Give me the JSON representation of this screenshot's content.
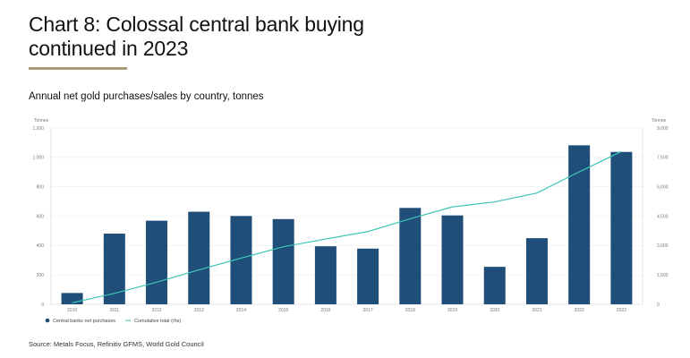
{
  "title_line1": "Chart 8: Colossal central bank buying",
  "title_line2": "continued in 2023",
  "subtitle": "Annual net gold purchases/sales by country, tonnes",
  "source": "Source: Metals Focus, Refinitiv GFMS, World Gold Council",
  "colors": {
    "bar": "#1f4e79",
    "line": "#3cc6b4",
    "accent_rule": "#a99b78"
  },
  "chart_data": {
    "type": "bar",
    "title": "Annual net gold purchases/sales by country, tonnes",
    "categories": [
      "2010",
      "2011",
      "2012",
      "2013",
      "2014",
      "2015",
      "2016",
      "2017",
      "2018",
      "2019",
      "2020",
      "2021",
      "2022",
      "2023"
    ],
    "series": [
      {
        "name": "Central banks net purchases",
        "type": "bar",
        "axis": "left",
        "values": [
          77,
          481,
          569,
          630,
          601,
          580,
          395,
          379,
          656,
          605,
          255,
          450,
          1082,
          1037
        ]
      },
      {
        "name": "Cumulative total (rhs)",
        "type": "line",
        "axis": "right",
        "values": [
          77,
          558,
          1127,
          1757,
          2358,
          2938,
          3333,
          3712,
          4368,
          4973,
          5228,
          5678,
          6760,
          7797
        ]
      }
    ],
    "ylabel": "Tonnes",
    "y2label": "Tonnes",
    "ylim": [
      0,
      1200
    ],
    "y2lim": [
      0,
      9000
    ],
    "yticks": [
      "0",
      "200",
      "400",
      "600",
      "800",
      "1,000",
      "1,200"
    ],
    "y2ticks": [
      "0",
      "1,500",
      "3,000",
      "4,500",
      "6,000",
      "7,500",
      "9,000"
    ],
    "grid": true,
    "legend": "bottom-left"
  }
}
